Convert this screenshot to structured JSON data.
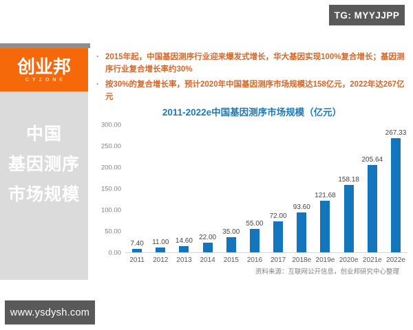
{
  "page": {
    "tg_badge": "TG: MYYJJPP",
    "watermark": "www.ysdysh.com"
  },
  "logo": {
    "name": "创业邦",
    "subtitle": "CYZONE",
    "brand_color": "#F5690B"
  },
  "sidebar": {
    "lines": [
      "中国",
      "基因测序",
      "市场规模"
    ],
    "background": "#DBDBDB"
  },
  "bullets": {
    "marker": "·",
    "color": "#D4682B",
    "items": [
      "2015年起，中国基因测序行业迎来爆发式增长，华大基因实现100%复合增长；基因测序行业复合增长率约30%",
      "按30%的复合增长率，预计2020年中国基因测序市场规模达158亿元，2022年达267亿元"
    ]
  },
  "chart_data": {
    "type": "bar",
    "title": "2011-2022e中国基因测序市场规模（亿元）",
    "title_color": "#1B7AB8",
    "categories": [
      "2011",
      "2012",
      "2013",
      "2014",
      "2015",
      "2016",
      "2017",
      "2018e",
      "2019e",
      "2020e",
      "2021e",
      "2022e"
    ],
    "values": [
      7.4,
      11.0,
      14.6,
      22.0,
      35.0,
      55.0,
      72.0,
      93.6,
      121.68,
      158.18,
      205.64,
      267.33
    ],
    "value_labels": [
      "7.40",
      "11.00",
      "14.60",
      "22.00",
      "35.00",
      "55.00",
      "72.00",
      "93.60",
      "121.68",
      "158.18",
      "205.64",
      "267.33"
    ],
    "yticks": [
      "0.00",
      "50.00",
      "100.00",
      "150.00",
      "200.00",
      "250.00",
      "300.00"
    ],
    "ylim": [
      0,
      300
    ],
    "ylabel": "",
    "xlabel": "",
    "grid": false,
    "legend": false,
    "bar_color": "#1375BC",
    "source": "资料来源：互联网公开信息，创业邦研究中心整理"
  }
}
